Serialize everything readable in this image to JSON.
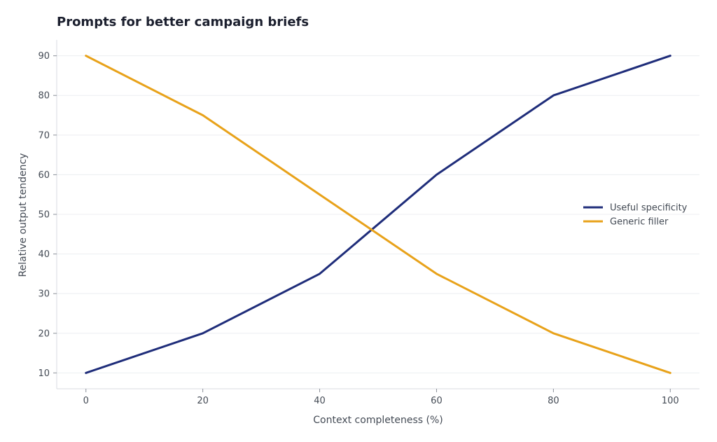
{
  "chart_data": {
    "type": "line",
    "title": "Prompts for better campaign briefs",
    "xlabel": "Context completeness (%)",
    "ylabel": "Relative output tendency",
    "x": [
      0,
      20,
      40,
      60,
      80,
      100
    ],
    "xlim": [
      -5,
      105
    ],
    "ylim": [
      6,
      94
    ],
    "xticks": [
      0,
      20,
      40,
      60,
      80,
      100
    ],
    "yticks": [
      10,
      20,
      30,
      40,
      50,
      60,
      70,
      80,
      90
    ],
    "grid": "horizontal",
    "legend_position": "right",
    "series": [
      {
        "name": "Useful specificity",
        "color": "#1f2d7a",
        "values": [
          10,
          20,
          35,
          60,
          80,
          90
        ]
      },
      {
        "name": "Generic filler",
        "color": "#e8a21a",
        "values": [
          90,
          75,
          55,
          35,
          20,
          10
        ]
      }
    ]
  }
}
